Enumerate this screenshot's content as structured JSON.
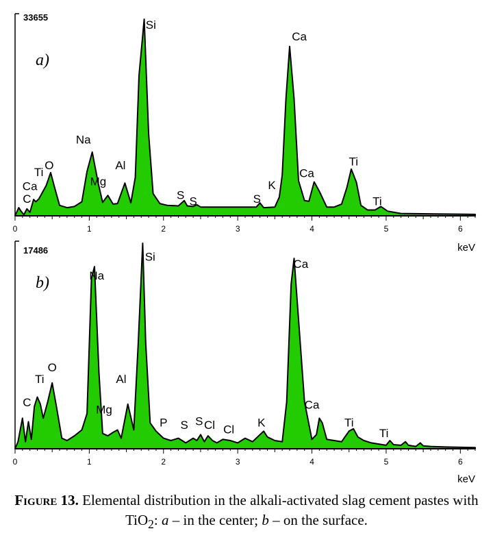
{
  "chart_data": [
    {
      "type": "area",
      "panel_label": "a)",
      "y_max_label": "33655",
      "xlabel": "keV",
      "xlim": [
        0,
        6.2
      ],
      "x_ticks": [
        0,
        1,
        2,
        3,
        4,
        5,
        6
      ],
      "fill_color": "#22cc00",
      "series": [
        {
          "x": [
            0,
            0.05,
            0.08,
            0.12,
            0.16,
            0.2,
            0.25,
            0.28,
            0.32,
            0.36,
            0.42,
            0.48,
            0.53,
            0.6,
            0.7,
            0.8,
            0.9,
            0.97,
            1.04,
            1.12,
            1.18,
            1.25,
            1.32,
            1.38,
            1.48,
            1.56,
            1.62,
            1.67,
            1.74,
            1.8,
            1.86,
            1.95,
            2.05,
            2.2,
            2.28,
            2.32,
            2.4,
            2.45,
            2.5,
            2.7,
            3.0,
            3.25,
            3.3,
            3.35,
            3.5,
            3.56,
            3.6,
            3.65,
            3.7,
            3.76,
            3.82,
            3.9,
            3.96,
            4.03,
            4.1,
            4.2,
            4.3,
            4.4,
            4.47,
            4.53,
            4.6,
            4.66,
            4.75,
            4.85,
            4.93,
            5.02,
            5.2,
            5.5,
            5.8,
            6.2
          ],
          "y": [
            0,
            1400,
            800,
            200,
            1200,
            600,
            2800,
            2400,
            2900,
            3800,
            5200,
            7400,
            5000,
            1800,
            1400,
            1600,
            2400,
            7600,
            10900,
            5600,
            2300,
            3500,
            2000,
            2100,
            5600,
            2200,
            6600,
            24000,
            33655,
            14000,
            3800,
            2100,
            1800,
            1700,
            2600,
            1700,
            1600,
            1900,
            1500,
            1500,
            1500,
            1500,
            2200,
            1400,
            1500,
            3200,
            7000,
            20000,
            29000,
            20000,
            6000,
            2600,
            2500,
            5800,
            4200,
            1500,
            1500,
            2000,
            4800,
            8000,
            5700,
            1800,
            1000,
            1000,
            1600,
            800,
            400,
            350,
            300,
            250
          ]
        }
      ],
      "peak_labels": [
        {
          "text": "Si",
          "x": 1.83,
          "y": 32000
        },
        {
          "text": "Ca",
          "x": 3.83,
          "y": 30000
        },
        {
          "text": "Na",
          "x": 0.92,
          "y": 12400
        },
        {
          "text": "Al",
          "x": 1.42,
          "y": 8000
        },
        {
          "text": "Mg",
          "x": 1.12,
          "y": 5200
        },
        {
          "text": "O",
          "x": 0.46,
          "y": 8000
        },
        {
          "text": "Ti",
          "x": 0.32,
          "y": 6800
        },
        {
          "text": "Ca",
          "x": 0.2,
          "y": 4400
        },
        {
          "text": "C",
          "x": 0.16,
          "y": 2200
        },
        {
          "text": "S",
          "x": 2.23,
          "y": 2900
        },
        {
          "text": "S",
          "x": 2.4,
          "y": 1800
        },
        {
          "text": "S",
          "x": 3.26,
          "y": 2200
        },
        {
          "text": "K",
          "x": 3.46,
          "y": 4600
        },
        {
          "text": "Ca",
          "x": 3.93,
          "y": 6600
        },
        {
          "text": "Ti",
          "x": 4.56,
          "y": 8600
        },
        {
          "text": "Ti",
          "x": 4.88,
          "y": 1800
        }
      ]
    },
    {
      "type": "area",
      "panel_label": "b)",
      "y_max_label": "17486",
      "xlabel": "keV",
      "xlim": [
        0,
        6.2
      ],
      "x_ticks": [
        0,
        1,
        2,
        3,
        4,
        5,
        6
      ],
      "fill_color": "#22cc00",
      "series": [
        {
          "x": [
            0,
            0.04,
            0.1,
            0.14,
            0.18,
            0.22,
            0.26,
            0.3,
            0.34,
            0.38,
            0.44,
            0.5,
            0.56,
            0.63,
            0.7,
            0.8,
            0.9,
            0.97,
            1.03,
            1.07,
            1.13,
            1.18,
            1.25,
            1.32,
            1.38,
            1.43,
            1.52,
            1.6,
            1.66,
            1.72,
            1.76,
            1.82,
            1.9,
            2.0,
            2.1,
            2.2,
            2.3,
            2.4,
            2.45,
            2.5,
            2.55,
            2.6,
            2.66,
            2.72,
            2.8,
            2.9,
            3.0,
            3.1,
            3.2,
            3.3,
            3.35,
            3.4,
            3.5,
            3.6,
            3.66,
            3.72,
            3.76,
            3.82,
            3.9,
            4.0,
            4.06,
            4.1,
            4.14,
            4.2,
            4.3,
            4.4,
            4.5,
            4.56,
            4.62,
            4.7,
            4.8,
            4.9,
            5.0,
            5.05,
            5.1,
            5.2,
            5.26,
            5.3,
            5.4,
            5.46,
            5.5,
            5.6,
            5.8,
            6.2
          ],
          "y": [
            0,
            600,
            2600,
            600,
            2300,
            800,
            3600,
            4400,
            3800,
            2600,
            4000,
            5600,
            3500,
            900,
            700,
            1100,
            1600,
            3000,
            14500,
            15500,
            6500,
            1300,
            1100,
            1400,
            1600,
            900,
            3800,
            1600,
            9000,
            17486,
            9000,
            2200,
            1500,
            900,
            700,
            900,
            500,
            900,
            700,
            1200,
            600,
            1100,
            700,
            500,
            800,
            700,
            500,
            900,
            600,
            1200,
            1500,
            1000,
            700,
            600,
            4000,
            14000,
            16200,
            11000,
            4000,
            800,
            1200,
            2600,
            2200,
            800,
            700,
            600,
            1500,
            1700,
            1000,
            700,
            500,
            400,
            300,
            700,
            350,
            300,
            600,
            300,
            200,
            500,
            250,
            200,
            150,
            100
          ]
        }
      ],
      "peak_labels": [
        {
          "text": "Si",
          "x": 1.82,
          "y": 16000
        },
        {
          "text": "Ca",
          "x": 3.85,
          "y": 15400
        },
        {
          "text": "Na",
          "x": 1.1,
          "y": 14400
        },
        {
          "text": "Al",
          "x": 1.43,
          "y": 5600
        },
        {
          "text": "Mg",
          "x": 1.2,
          "y": 3000
        },
        {
          "text": "O",
          "x": 0.5,
          "y": 6600
        },
        {
          "text": "Ti",
          "x": 0.33,
          "y": 5600
        },
        {
          "text": "C",
          "x": 0.16,
          "y": 3600
        },
        {
          "text": "P",
          "x": 2.0,
          "y": 1900
        },
        {
          "text": "S",
          "x": 2.28,
          "y": 1700
        },
        {
          "text": "S",
          "x": 2.48,
          "y": 2000
        },
        {
          "text": "Cl",
          "x": 2.62,
          "y": 1700
        },
        {
          "text": "Cl",
          "x": 2.88,
          "y": 1300
        },
        {
          "text": "K",
          "x": 3.32,
          "y": 1900
        },
        {
          "text": "Ca",
          "x": 4.0,
          "y": 3400
        },
        {
          "text": "Ti",
          "x": 4.5,
          "y": 1900
        },
        {
          "text": "Ti",
          "x": 4.97,
          "y": 1000
        }
      ]
    }
  ],
  "caption": {
    "label": "Figure 13.",
    "text_part1": " Elemental distribution in the alkali-activated slag cement pastes with TiO",
    "subscript": "2",
    "text_part2": ": ",
    "a_letter": "a",
    "text_part3": " – in the center; ",
    "b_letter": "b",
    "text_part4": " – on the surface."
  }
}
